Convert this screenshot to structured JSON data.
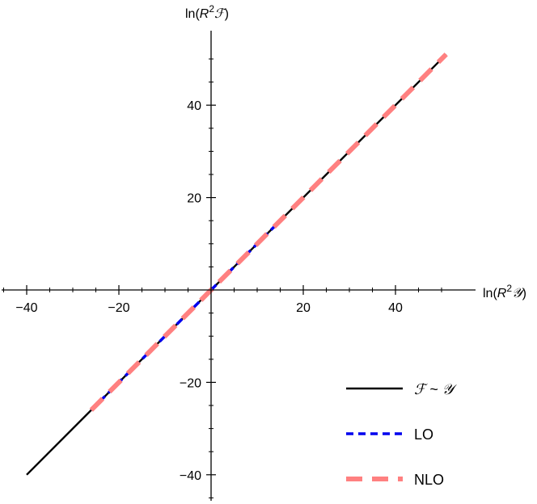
{
  "chart_data": {
    "type": "line",
    "xlabel": {
      "pre": "ln(",
      "var": "R",
      "sup": "2",
      "sym": "𝒴",
      "post": ")"
    },
    "ylabel": {
      "pre": "ln(",
      "var": "R",
      "sup": "2",
      "sym": "ℱ",
      "post": ")"
    },
    "xlim": [
      -45,
      55
    ],
    "ylim": [
      -46,
      55
    ],
    "xticks": [
      -40,
      -20,
      20,
      40
    ],
    "yticks": [
      -40,
      -20,
      20,
      40
    ],
    "xtick_labels": [
      "−40",
      "−20",
      "20",
      "40"
    ],
    "ytick_labels": [
      "−40",
      "−20",
      "20",
      "40"
    ],
    "x_minor_step": 5,
    "y_minor_step": 5,
    "grid": false,
    "legend_position": "bottom-right",
    "series": [
      {
        "name": "ℱ ~ 𝒴",
        "color": "#000000",
        "style": "solid",
        "x": [
          -40,
          51
        ],
        "y": [
          -40,
          51
        ]
      },
      {
        "name": "LO",
        "color": "#0000ee",
        "style": "dashed",
        "x": [
          -26,
          16
        ],
        "y": [
          -26,
          16
        ]
      },
      {
        "name": "NLO",
        "color": "#ff8080",
        "style": "long-dashed",
        "x": [
          -26,
          51
        ],
        "y": [
          -26,
          51
        ]
      }
    ]
  }
}
